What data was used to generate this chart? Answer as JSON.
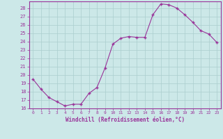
{
  "x": [
    0,
    1,
    2,
    3,
    4,
    5,
    6,
    7,
    8,
    9,
    10,
    11,
    12,
    13,
    14,
    15,
    16,
    17,
    18,
    19,
    20,
    21,
    22,
    23
  ],
  "y": [
    19.5,
    18.3,
    17.3,
    16.8,
    16.3,
    16.5,
    16.5,
    17.8,
    18.5,
    20.8,
    23.7,
    24.4,
    24.6,
    24.5,
    24.5,
    27.2,
    28.5,
    28.4,
    28.0,
    27.2,
    26.3,
    25.3,
    24.9,
    23.9
  ],
  "ylim": [
    16,
    28.8
  ],
  "yticks": [
    16,
    17,
    18,
    19,
    20,
    21,
    22,
    23,
    24,
    25,
    26,
    27,
    28
  ],
  "xlim": [
    -0.5,
    23.5
  ],
  "xticks": [
    0,
    1,
    2,
    3,
    4,
    5,
    6,
    7,
    8,
    9,
    10,
    11,
    12,
    13,
    14,
    15,
    16,
    17,
    18,
    19,
    20,
    21,
    22,
    23
  ],
  "xlabel": "Windchill (Refroidissement éolien,°C)",
  "line_color": "#993399",
  "marker_color": "#993399",
  "bg_color": "#cce8e8",
  "grid_color": "#aacece",
  "axis_color": "#993399",
  "tick_color": "#993399",
  "label_color": "#993399"
}
